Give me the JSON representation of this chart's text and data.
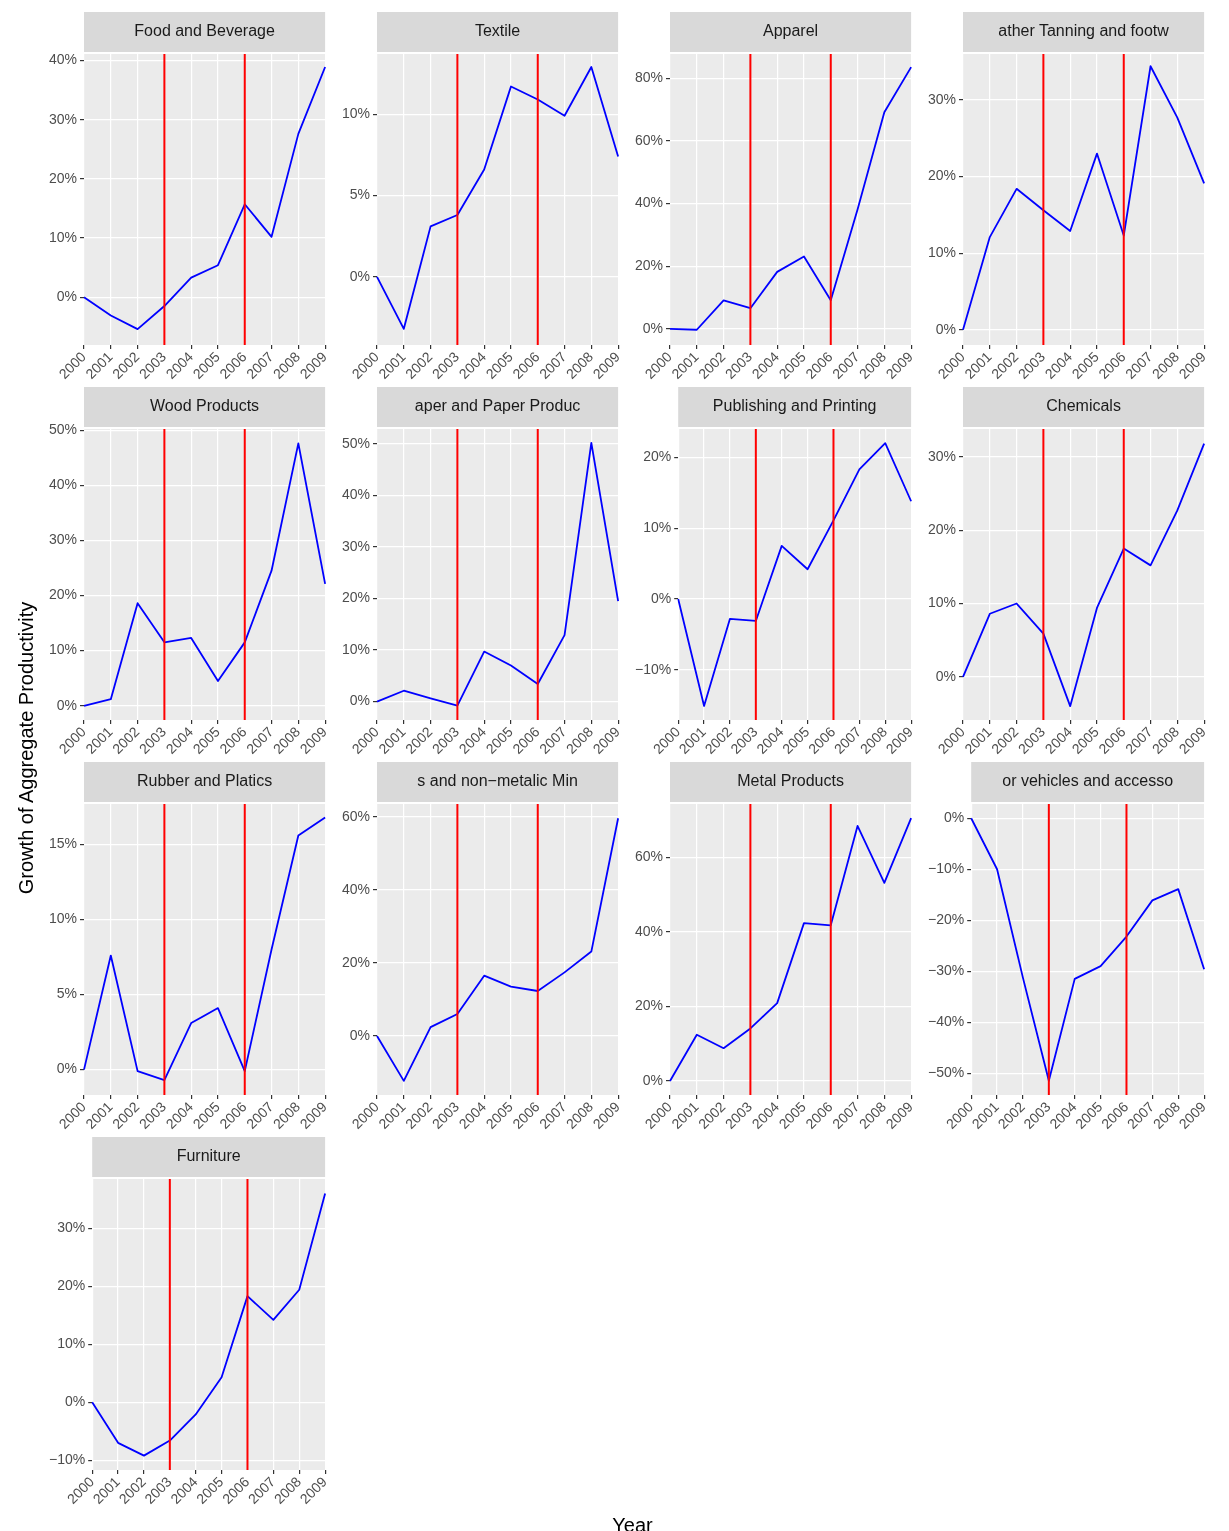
{
  "chart_data": [
    {
      "type": "line",
      "title": "Food and Beverage",
      "annotations": [
        "Year",
        "Growth of Aggregate Productivity"
      ],
      "categories": [
        "2000",
        "2001",
        "2002",
        "2003",
        "2004",
        "2005",
        "2006",
        "2007",
        "2008",
        "2009"
      ],
      "series": [
        {
          "color": "#0000ff",
          "values": [
            0,
            -3.1,
            -5.4,
            -1.5,
            3.3,
            5.4,
            15.7,
            10.2,
            27.6,
            38.9
          ]
        }
      ],
      "ylim": [
        -8.1,
        41.1
      ],
      "yticks": [
        {
          "value": 0,
          "label": "0%"
        },
        {
          "value": 10,
          "label": "10%"
        },
        {
          "value": 20,
          "label": "20%"
        },
        {
          "value": 30,
          "label": "30%"
        },
        {
          "value": 40,
          "label": "40%"
        }
      ],
      "grid": true,
      "ref_lines": [
        {
          "axis": "x",
          "value": "2003",
          "color": "#ff0000"
        },
        {
          "axis": "x",
          "value": "2006",
          "color": "#ff0000"
        }
      ]
    },
    {
      "type": "line",
      "title": "Textile",
      "categories": [
        "2000",
        "2001",
        "2002",
        "2003",
        "2004",
        "2005",
        "2006",
        "2007",
        "2008",
        "2009"
      ],
      "series": [
        {
          "color": "#0000ff",
          "values": [
            0,
            -3.2,
            3.1,
            3.8,
            6.6,
            11.7,
            10.9,
            9.9,
            12.9,
            7.4
          ]
        }
      ],
      "ylim": [
        -4.2,
        13.7
      ],
      "yticks": [
        {
          "value": 0,
          "label": "0%"
        },
        {
          "value": 5,
          "label": "5%"
        },
        {
          "value": 10,
          "label": "10%"
        }
      ],
      "grid": true,
      "ref_lines": [
        {
          "axis": "x",
          "value": "2003",
          "color": "#ff0000"
        },
        {
          "axis": "x",
          "value": "2006",
          "color": "#ff0000"
        }
      ]
    },
    {
      "type": "line",
      "title": "Apparel",
      "categories": [
        "2000",
        "2001",
        "2002",
        "2003",
        "2004",
        "2005",
        "2006",
        "2007",
        "2008",
        "2009"
      ],
      "series": [
        {
          "color": "#0000ff",
          "values": [
            0,
            -0.3,
            9.1,
            6.6,
            18.2,
            23.1,
            9.1,
            38.1,
            69.2,
            83.6
          ]
        }
      ],
      "ylim": [
        -5.2,
        87.8
      ],
      "yticks": [
        {
          "value": 0,
          "label": "0%"
        },
        {
          "value": 20,
          "label": "20%"
        },
        {
          "value": 40,
          "label": "40%"
        },
        {
          "value": 60,
          "label": "60%"
        },
        {
          "value": 80,
          "label": "80%"
        }
      ],
      "grid": true,
      "ref_lines": [
        {
          "axis": "x",
          "value": "2003",
          "color": "#ff0000"
        },
        {
          "axis": "x",
          "value": "2006",
          "color": "#ff0000"
        }
      ]
    },
    {
      "type": "line",
      "title": "ather Tanning and footw",
      "categories": [
        "2000",
        "2001",
        "2002",
        "2003",
        "2004",
        "2005",
        "2006",
        "2007",
        "2008",
        "2009"
      ],
      "series": [
        {
          "color": "#0000ff",
          "values": [
            0,
            12.1,
            18.4,
            15.6,
            12.9,
            23,
            12.3,
            34.4,
            27.7,
            19.1
          ]
        }
      ],
      "ylim": [
        -2,
        36
      ],
      "yticks": [
        {
          "value": 0,
          "label": "0%"
        },
        {
          "value": 10,
          "label": "10%"
        },
        {
          "value": 20,
          "label": "20%"
        },
        {
          "value": 30,
          "label": "30%"
        }
      ],
      "grid": true,
      "ref_lines": [
        {
          "axis": "x",
          "value": "2003",
          "color": "#ff0000"
        },
        {
          "axis": "x",
          "value": "2006",
          "color": "#ff0000"
        }
      ]
    },
    {
      "type": "line",
      "title": "Wood Products",
      "categories": [
        "2000",
        "2001",
        "2002",
        "2003",
        "2004",
        "2005",
        "2006",
        "2007",
        "2008",
        "2009"
      ],
      "series": [
        {
          "color": "#0000ff",
          "values": [
            0,
            1.2,
            18.6,
            11.5,
            12.3,
            4.5,
            11.5,
            24.5,
            47.6,
            22.1
          ]
        }
      ],
      "ylim": [
        -2.6,
        50.2
      ],
      "yticks": [
        {
          "value": 0,
          "label": "0%"
        },
        {
          "value": 10,
          "label": "10%"
        },
        {
          "value": 20,
          "label": "20%"
        },
        {
          "value": 30,
          "label": "30%"
        },
        {
          "value": 40,
          "label": "40%"
        },
        {
          "value": 50,
          "label": "50%"
        }
      ],
      "grid": true,
      "ref_lines": [
        {
          "axis": "x",
          "value": "2003",
          "color": "#ff0000"
        },
        {
          "axis": "x",
          "value": "2006",
          "color": "#ff0000"
        }
      ]
    },
    {
      "type": "line",
      "title": "aper and Paper Produc",
      "categories": [
        "2000",
        "2001",
        "2002",
        "2003",
        "2004",
        "2005",
        "2006",
        "2007",
        "2008",
        "2009"
      ],
      "series": [
        {
          "color": "#0000ff",
          "values": [
            0,
            2.1,
            0.6,
            -0.8,
            9.7,
            7,
            3.4,
            12.9,
            50.2,
            19.5
          ]
        }
      ],
      "ylim": [
        -3.6,
        52.9
      ],
      "yticks": [
        {
          "value": 0,
          "label": "0%"
        },
        {
          "value": 10,
          "label": "10%"
        },
        {
          "value": 20,
          "label": "20%"
        },
        {
          "value": 30,
          "label": "30%"
        },
        {
          "value": 40,
          "label": "40%"
        },
        {
          "value": 50,
          "label": "50%"
        }
      ],
      "grid": true,
      "ref_lines": [
        {
          "axis": "x",
          "value": "2003",
          "color": "#ff0000"
        },
        {
          "axis": "x",
          "value": "2006",
          "color": "#ff0000"
        }
      ]
    },
    {
      "type": "line",
      "title": "Publishing and Printing",
      "categories": [
        "2000",
        "2001",
        "2002",
        "2003",
        "2004",
        "2005",
        "2006",
        "2007",
        "2008",
        "2009"
      ],
      "series": [
        {
          "color": "#0000ff",
          "values": [
            0,
            -15.1,
            -2.8,
            -3.1,
            7.5,
            4.2,
            11.1,
            18.3,
            22,
            13.8
          ]
        }
      ],
      "ylim": [
        -17.1,
        24
      ],
      "yticks": [
        {
          "value": -10,
          "label": "−10%"
        },
        {
          "value": 0,
          "label": "0%"
        },
        {
          "value": 10,
          "label": "10%"
        },
        {
          "value": 20,
          "label": "20%"
        }
      ],
      "grid": true,
      "ref_lines": [
        {
          "axis": "x",
          "value": "2003",
          "color": "#ff0000"
        },
        {
          "axis": "x",
          "value": "2006",
          "color": "#ff0000"
        }
      ]
    },
    {
      "type": "line",
      "title": "Chemicals",
      "categories": [
        "2000",
        "2001",
        "2002",
        "2003",
        "2004",
        "2005",
        "2006",
        "2007",
        "2008",
        "2009"
      ],
      "series": [
        {
          "color": "#0000ff",
          "values": [
            0,
            8.6,
            10,
            5.9,
            -4,
            9.4,
            17.5,
            15.2,
            22.7,
            31.8
          ]
        }
      ],
      "ylim": [
        -5.9,
        33.8
      ],
      "yticks": [
        {
          "value": 0,
          "label": "0%"
        },
        {
          "value": 10,
          "label": "10%"
        },
        {
          "value": 20,
          "label": "20%"
        },
        {
          "value": 30,
          "label": "30%"
        }
      ],
      "grid": true,
      "ref_lines": [
        {
          "axis": "x",
          "value": "2003",
          "color": "#ff0000"
        },
        {
          "axis": "x",
          "value": "2006",
          "color": "#ff0000"
        }
      ]
    },
    {
      "type": "line",
      "title": "Rubber and Platics",
      "categories": [
        "2000",
        "2001",
        "2002",
        "2003",
        "2004",
        "2005",
        "2006",
        "2007",
        "2008",
        "2009"
      ],
      "series": [
        {
          "color": "#0000ff",
          "values": [
            0,
            7.6,
            -0.1,
            -0.7,
            3.1,
            4.1,
            -0.1,
            8,
            15.6,
            16.8
          ]
        }
      ],
      "ylim": [
        -1.7,
        17.7
      ],
      "yticks": [
        {
          "value": 0,
          "label": "0%"
        },
        {
          "value": 5,
          "label": "5%"
        },
        {
          "value": 10,
          "label": "10%"
        },
        {
          "value": 15,
          "label": "15%"
        }
      ],
      "grid": true,
      "ref_lines": [
        {
          "axis": "x",
          "value": "2003",
          "color": "#ff0000"
        },
        {
          "axis": "x",
          "value": "2006",
          "color": "#ff0000"
        }
      ]
    },
    {
      "type": "line",
      "title": "s and non−metalic Min",
      "categories": [
        "2000",
        "2001",
        "2002",
        "2003",
        "2004",
        "2005",
        "2006",
        "2007",
        "2008",
        "2009"
      ],
      "series": [
        {
          "color": "#0000ff",
          "values": [
            0,
            -12.3,
            2.4,
            6,
            16.5,
            13.5,
            12.3,
            17.4,
            23.1,
            59.6
          ]
        }
      ],
      "ylim": [
        -16.2,
        63.5
      ],
      "yticks": [
        {
          "value": 0,
          "label": "0%"
        },
        {
          "value": 20,
          "label": "20%"
        },
        {
          "value": 40,
          "label": "40%"
        },
        {
          "value": 60,
          "label": "60%"
        }
      ],
      "grid": true,
      "ref_lines": [
        {
          "axis": "x",
          "value": "2003",
          "color": "#ff0000"
        },
        {
          "axis": "x",
          "value": "2006",
          "color": "#ff0000"
        }
      ]
    },
    {
      "type": "line",
      "title": "Metal Products",
      "categories": [
        "2000",
        "2001",
        "2002",
        "2003",
        "2004",
        "2005",
        "2006",
        "2007",
        "2008",
        "2009"
      ],
      "series": [
        {
          "color": "#0000ff",
          "values": [
            0,
            12.4,
            8.8,
            14.1,
            20.9,
            42.4,
            41.8,
            68.5,
            53.2,
            70.6
          ]
        }
      ],
      "ylim": [
        -3.8,
        74.4
      ],
      "yticks": [
        {
          "value": 0,
          "label": "0%"
        },
        {
          "value": 20,
          "label": "20%"
        },
        {
          "value": 40,
          "label": "40%"
        },
        {
          "value": 60,
          "label": "60%"
        }
      ],
      "grid": true,
      "ref_lines": [
        {
          "axis": "x",
          "value": "2003",
          "color": "#ff0000"
        },
        {
          "axis": "x",
          "value": "2006",
          "color": "#ff0000"
        }
      ]
    },
    {
      "type": "line",
      "title": "or vehicles and accesso",
      "categories": [
        "2000",
        "2001",
        "2002",
        "2003",
        "2004",
        "2005",
        "2006",
        "2007",
        "2008",
        "2009"
      ],
      "series": [
        {
          "color": "#0000ff",
          "values": [
            0,
            -10,
            -31.3,
            -51.5,
            -31.5,
            -29,
            -23.2,
            -16.1,
            -13.9,
            -29.6
          ]
        }
      ],
      "ylim": [
        -54.3,
        2.8
      ],
      "yticks": [
        {
          "value": -50,
          "label": "−50%"
        },
        {
          "value": -40,
          "label": "−40%"
        },
        {
          "value": -30,
          "label": "−30%"
        },
        {
          "value": -20,
          "label": "−20%"
        },
        {
          "value": -10,
          "label": "−10%"
        },
        {
          "value": 0,
          "label": "0%"
        }
      ],
      "grid": true,
      "ref_lines": [
        {
          "axis": "x",
          "value": "2003",
          "color": "#ff0000"
        },
        {
          "axis": "x",
          "value": "2006",
          "color": "#ff0000"
        }
      ]
    },
    {
      "type": "line",
      "title": "Furniture",
      "categories": [
        "2000",
        "2001",
        "2002",
        "2003",
        "2004",
        "2005",
        "2006",
        "2007",
        "2008",
        "2009"
      ],
      "series": [
        {
          "color": "#0000ff",
          "values": [
            0,
            -7,
            -9.2,
            -6.6,
            -2.1,
            4.3,
            18.3,
            14.2,
            19.4,
            36
          ]
        }
      ],
      "ylim": [
        -11.7,
        38.5
      ],
      "yticks": [
        {
          "value": -10,
          "label": "−10%"
        },
        {
          "value": 0,
          "label": "0%"
        },
        {
          "value": 10,
          "label": "10%"
        },
        {
          "value": 20,
          "label": "20%"
        },
        {
          "value": 30,
          "label": "30%"
        }
      ],
      "grid": true,
      "ref_lines": [
        {
          "axis": "x",
          "value": "2003",
          "color": "#ff0000"
        },
        {
          "axis": "x",
          "value": "2006",
          "color": "#ff0000"
        }
      ]
    }
  ]
}
